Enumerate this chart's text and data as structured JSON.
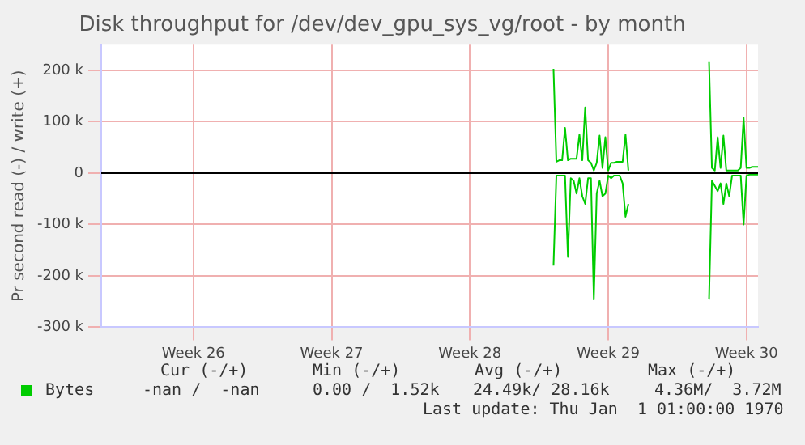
{
  "chart_data": {
    "type": "line",
    "title": "Disk throughput for /dev/dev_gpu_sys_vg/root - by month",
    "ylabel": "Pr second read (-) / write (+)",
    "categories": [
      null,
      null,
      null,
      null,
      null,
      null,
      null,
      null,
      null,
      null,
      null,
      null,
      null,
      null,
      null,
      null,
      null,
      null,
      null,
      null,
      null,
      null,
      null,
      null,
      null,
      null,
      null,
      null,
      null,
      null,
      null,
      null,
      "Week 26",
      null,
      null,
      null,
      null,
      null,
      null,
      null,
      null,
      null,
      null,
      null,
      null,
      null,
      null,
      null,
      null,
      null,
      null,
      null,
      null,
      null,
      null,
      null,
      null,
      null,
      null,
      null,
      null,
      null,
      null,
      null,
      null,
      null,
      null,
      null,
      null,
      null,
      null,
      null,
      null,
      null,
      null,
      null,
      null,
      null,
      null,
      null,
      "Week 27",
      null,
      null,
      null,
      null,
      null,
      null,
      null,
      null,
      null,
      null,
      null,
      null,
      null,
      null,
      null,
      null,
      null,
      null,
      null,
      null,
      null,
      null,
      null,
      null,
      null,
      null,
      null,
      null,
      null,
      null,
      null,
      null,
      null,
      null,
      null,
      null,
      null,
      null,
      null,
      null,
      null,
      null,
      null,
      null,
      null,
      null,
      null,
      "Week 28",
      null,
      null,
      null,
      null,
      null,
      null,
      null,
      null,
      null,
      null,
      null,
      null,
      null,
      null,
      null,
      null,
      null,
      null,
      null,
      null,
      null,
      null,
      null,
      null,
      null,
      null,
      null,
      null,
      null,
      null,
      null,
      null,
      null,
      null,
      null,
      null,
      null,
      null,
      null,
      null,
      null,
      null,
      null,
      null,
      null,
      null,
      null,
      "Week 29",
      null,
      null,
      null,
      null,
      null,
      null,
      null,
      null,
      null,
      null,
      null,
      null,
      null,
      null,
      null,
      null,
      null,
      null,
      null,
      null,
      null,
      null,
      null,
      null,
      null,
      null,
      null,
      null,
      null,
      null,
      null,
      null,
      null,
      null,
      null,
      null,
      null,
      null,
      null,
      null,
      null,
      null,
      null,
      null,
      null,
      null,
      null,
      "Week 30",
      null,
      null,
      null,
      null
    ],
    "ylim": [
      -300000,
      250000
    ],
    "yticks": [
      {
        "value": -300000,
        "label": "-300 k"
      },
      {
        "value": -200000,
        "label": "-200 k"
      },
      {
        "value": -100000,
        "label": "-100 k"
      },
      {
        "value": 0,
        "label": "0"
      },
      {
        "value": 100000,
        "label": "100 k"
      },
      {
        "value": 200000,
        "label": "200 k"
      }
    ],
    "grid": true,
    "legend": "bottom left",
    "marker": "none",
    "line_style": "solid",
    "ref_lines": [
      {
        "axis": "y",
        "value": 0,
        "color": "#000000"
      }
    ],
    "series": [
      {
        "name": "Bytes",
        "color": "#00cc00",
        "values": [
          null,
          null,
          null,
          null,
          null,
          null,
          null,
          null,
          null,
          null,
          null,
          null,
          null,
          null,
          null,
          null,
          null,
          null,
          null,
          null,
          null,
          null,
          null,
          null,
          null,
          null,
          null,
          null,
          null,
          null,
          null,
          null,
          null,
          null,
          null,
          null,
          null,
          null,
          null,
          null,
          null,
          null,
          null,
          null,
          null,
          null,
          null,
          null,
          null,
          null,
          null,
          null,
          null,
          null,
          null,
          null,
          null,
          null,
          null,
          null,
          null,
          null,
          null,
          null,
          null,
          null,
          null,
          null,
          null,
          null,
          null,
          null,
          null,
          null,
          null,
          null,
          null,
          null,
          null,
          null,
          null,
          null,
          null,
          null,
          null,
          null,
          null,
          null,
          null,
          null,
          null,
          null,
          null,
          null,
          null,
          null,
          null,
          null,
          null,
          null,
          null,
          null,
          null,
          null,
          null,
          null,
          null,
          null,
          null,
          null,
          null,
          null,
          null,
          null,
          null,
          null,
          null,
          null,
          null,
          null,
          null,
          null,
          null,
          null,
          null,
          null,
          null,
          null,
          null,
          null,
          null,
          null,
          null,
          null,
          null,
          null,
          null,
          null,
          null,
          null,
          null,
          null,
          null,
          null,
          null,
          null,
          null,
          null,
          null,
          null,
          null,
          null,
          null,
          null,
          null,
          null,
          null,
          203000,
          22000,
          25000,
          25000,
          88000,
          25000,
          28000,
          28000,
          28000,
          75000,
          25000,
          128000,
          25000,
          20000,
          5000,
          20000,
          73000,
          10000,
          70000,
          5000,
          20000,
          20000,
          22000,
          22000,
          22000,
          75000,
          5000,
          null,
          null,
          null,
          null,
          null,
          null,
          null,
          null,
          null,
          null,
          null,
          null,
          null,
          null,
          null,
          null,
          null,
          null,
          null,
          null,
          null,
          null,
          null,
          null,
          null,
          null,
          null,
          216000,
          10000,
          5000,
          70000,
          10000,
          73000,
          5000,
          5000,
          5000,
          5000,
          5000,
          10000,
          108000,
          10000,
          10000,
          12000,
          12000,
          12000
        ]
      },
      {
        "color": "#00cc00",
        "values": [
          null,
          null,
          null,
          null,
          null,
          null,
          null,
          null,
          null,
          null,
          null,
          null,
          null,
          null,
          null,
          null,
          null,
          null,
          null,
          null,
          null,
          null,
          null,
          null,
          null,
          null,
          null,
          null,
          null,
          null,
          null,
          null,
          null,
          null,
          null,
          null,
          null,
          null,
          null,
          null,
          null,
          null,
          null,
          null,
          null,
          null,
          null,
          null,
          null,
          null,
          null,
          null,
          null,
          null,
          null,
          null,
          null,
          null,
          null,
          null,
          null,
          null,
          null,
          null,
          null,
          null,
          null,
          null,
          null,
          null,
          null,
          null,
          null,
          null,
          null,
          null,
          null,
          null,
          null,
          null,
          null,
          null,
          null,
          null,
          null,
          null,
          null,
          null,
          null,
          null,
          null,
          null,
          null,
          null,
          null,
          null,
          null,
          null,
          null,
          null,
          null,
          null,
          null,
          null,
          null,
          null,
          null,
          null,
          null,
          null,
          null,
          null,
          null,
          null,
          null,
          null,
          null,
          null,
          null,
          null,
          null,
          null,
          null,
          null,
          null,
          null,
          null,
          null,
          null,
          null,
          null,
          null,
          null,
          null,
          null,
          null,
          null,
          null,
          null,
          null,
          null,
          null,
          null,
          null,
          null,
          null,
          null,
          null,
          null,
          null,
          null,
          null,
          null,
          null,
          null,
          null,
          null,
          -180000,
          -5000,
          -5000,
          -5000,
          -5000,
          -163000,
          -10000,
          -15000,
          -40000,
          -10000,
          -45000,
          -60000,
          -10000,
          -10000,
          -246000,
          -40000,
          -15000,
          -45000,
          -40000,
          -5000,
          -10000,
          -5000,
          -5000,
          -5000,
          -20000,
          -85000,
          -60000,
          null,
          null,
          null,
          null,
          null,
          null,
          null,
          null,
          null,
          null,
          null,
          null,
          null,
          null,
          null,
          null,
          null,
          null,
          null,
          null,
          null,
          null,
          null,
          null,
          null,
          null,
          null,
          -246000,
          -15000,
          -25000,
          -35000,
          -20000,
          -60000,
          -20000,
          -45000,
          -5000,
          -5000,
          -5000,
          -5000,
          -100000,
          -5000,
          -3000,
          -3000,
          -3000,
          -3000
        ]
      }
    ],
    "annotations": [
      "Cur (-/+)",
      "Min (-/+)",
      "Avg (-/+)",
      "Max (-/+)",
      "-nan /  -nan",
      "0.00 /  1.52k",
      "24.49k/ 28.16k",
      "4.36M/  3.72M",
      "Last update: Thu Jan  1 01:00:00 1970"
    ]
  }
}
